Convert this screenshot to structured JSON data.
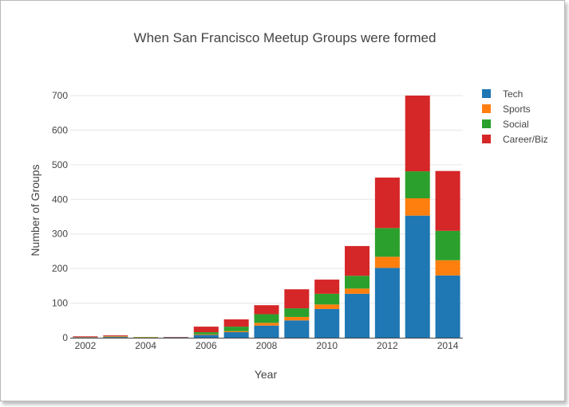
{
  "chart_data": {
    "type": "bar",
    "stacked": true,
    "title": "When San Francisco Meetup Groups were formed",
    "xlabel": "Year",
    "ylabel": "Number of Groups",
    "categories": [
      2002,
      2003,
      2004,
      2005,
      2006,
      2007,
      2008,
      2009,
      2010,
      2011,
      2012,
      2013,
      2014
    ],
    "x_tick_labels": [
      "2002",
      "2004",
      "2006",
      "2008",
      "2010",
      "2012",
      "2014"
    ],
    "y_tick_labels": [
      "0",
      "100",
      "200",
      "300",
      "400",
      "500",
      "600",
      "700"
    ],
    "ylim": [
      0,
      700
    ],
    "grid": true,
    "legend_position": "top-right",
    "series": [
      {
        "name": "Tech",
        "color": "#1f77b4",
        "values": [
          1,
          2,
          0,
          1,
          8,
          16,
          35,
          50,
          83,
          127,
          202,
          353,
          180
        ]
      },
      {
        "name": "Sports",
        "color": "#ff7f0e",
        "values": [
          1,
          2,
          1,
          0,
          2,
          3,
          8,
          10,
          13,
          15,
          32,
          50,
          44
        ]
      },
      {
        "name": "Social",
        "color": "#2ca02c",
        "values": [
          0,
          1,
          1,
          0,
          6,
          13,
          25,
          25,
          31,
          37,
          83,
          78,
          85
        ]
      },
      {
        "name": "Career/Biz",
        "color": "#d62728",
        "values": [
          2,
          2,
          0,
          1,
          16,
          21,
          26,
          55,
          41,
          86,
          146,
          219,
          173
        ]
      }
    ]
  }
}
